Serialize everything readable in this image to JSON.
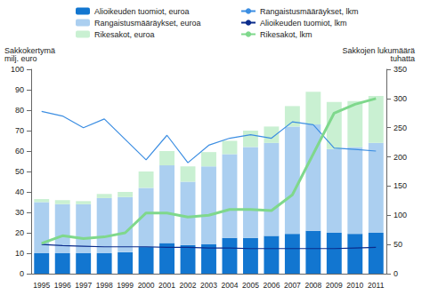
{
  "chart_data": {
    "type": "bar",
    "stacked": true,
    "grid": false,
    "legend": "top",
    "y_label": "Sakkokertymä\nmilj. euro",
    "y2_label": "Sakkojen lukumäärä\ntuhatta",
    "categories": [
      "1995",
      "1996",
      "1997",
      "1998",
      "1999",
      "2000",
      "2001",
      "2002",
      "2003",
      "2004",
      "2005",
      "2006",
      "2007",
      "2008",
      "2009",
      "2010",
      "2011"
    ],
    "ylim": [
      0,
      100
    ],
    "yticks": [
      0,
      10,
      20,
      30,
      40,
      50,
      60,
      70,
      80,
      90,
      100
    ],
    "y2lim": [
      0,
      350
    ],
    "y2ticks": [
      0,
      50,
      100,
      150,
      200,
      250,
      300,
      350
    ],
    "series": [
      {
        "name": "Alioikeuden tuomiot, euroa",
        "type": "bar",
        "color": "#1276d0",
        "values": [
          10,
          10,
          10,
          10,
          10.5,
          13,
          15,
          14,
          14.5,
          17.5,
          17.5,
          18.5,
          19.5,
          21,
          20,
          19.5,
          20
        ]
      },
      {
        "name": "Rangaistusmääräykset, euroa",
        "type": "bar",
        "color": "#abcff0",
        "values": [
          25,
          24,
          24,
          27,
          27,
          29,
          38,
          31,
          38,
          41,
          44.5,
          45.5,
          52.5,
          52,
          41,
          42.5,
          44
        ]
      },
      {
        "name": "Rikesakot, euroa",
        "type": "bar",
        "color": "#c9f0d2",
        "values": [
          1.5,
          2,
          1.5,
          2,
          2.5,
          8,
          7,
          7.5,
          7,
          6.5,
          8,
          8,
          10,
          16,
          23,
          22.5,
          23
        ]
      },
      {
        "name": "Rangaistusmääräykset, lkm",
        "type": "line",
        "axis": "y2",
        "color": "#3c8ee2",
        "values": [
          278,
          270,
          250,
          265,
          230,
          195,
          237,
          190,
          220,
          232,
          238,
          232,
          260,
          255,
          215,
          213,
          210
        ]
      },
      {
        "name": "Alioikeuden tuomiot, lkm",
        "type": "line",
        "axis": "y2",
        "color": "#0b2c8c",
        "values": [
          50,
          48,
          47,
          46,
          46,
          46,
          45,
          45,
          44,
          44,
          43,
          43,
          43,
          43,
          43,
          44,
          45
        ]
      },
      {
        "name": "Rikesakot, lkm",
        "type": "line",
        "axis": "y2",
        "color": "#7fd88c",
        "values": [
          52,
          65,
          60,
          63,
          70,
          104,
          104,
          97,
          100,
          110,
          110,
          108,
          135,
          205,
          275,
          290,
          300
        ]
      }
    ]
  }
}
